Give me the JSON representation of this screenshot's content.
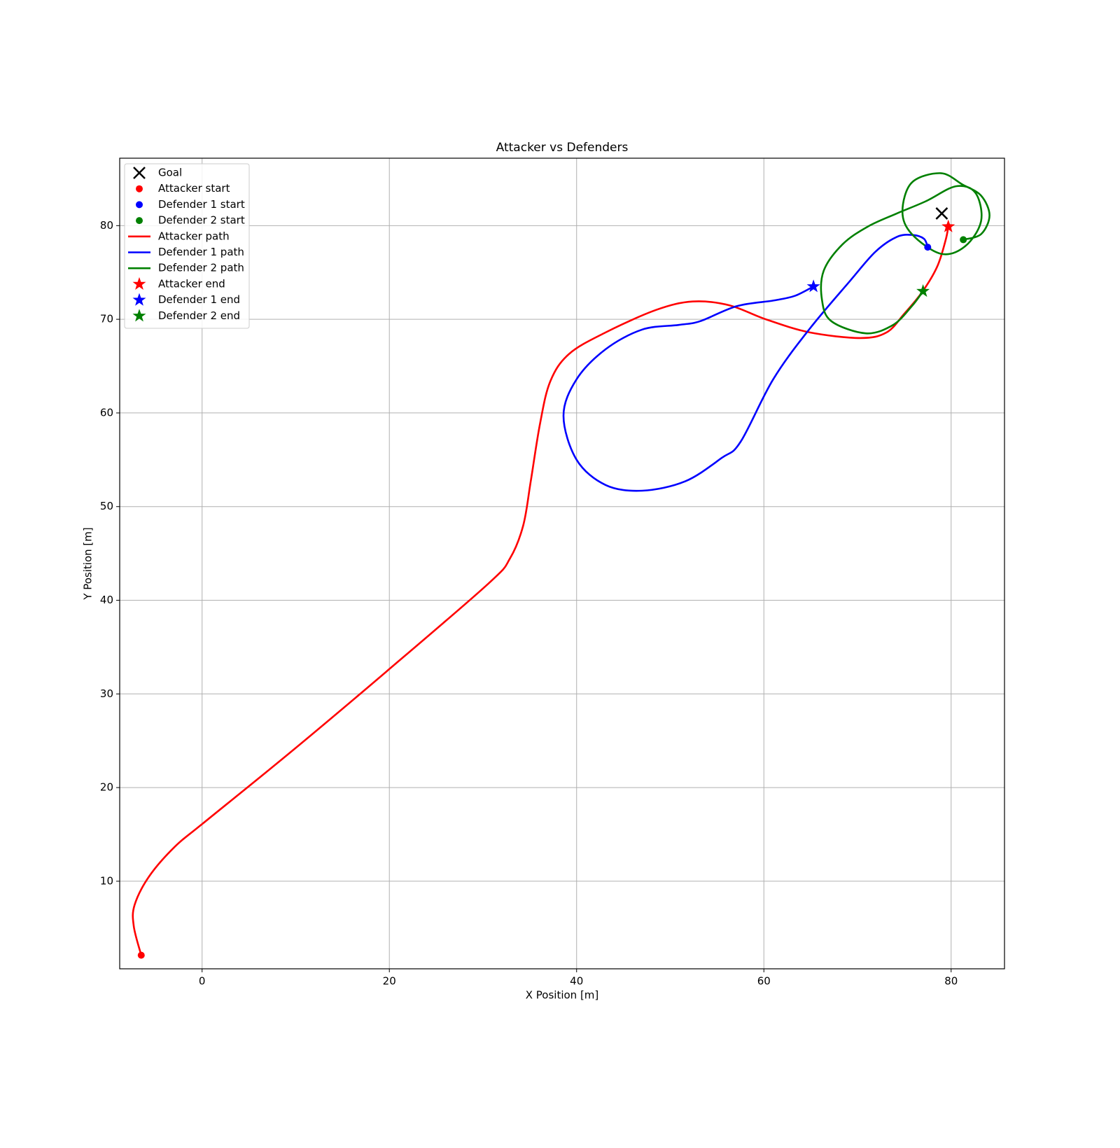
{
  "chart_data": {
    "type": "line",
    "title": "Attacker vs Defenders",
    "xlabel": "X Position [m]",
    "ylabel": "Y Position [m]",
    "xlim": [
      -8.8,
      85.7
    ],
    "ylim": [
      0.65,
      87.2
    ],
    "xticks": [
      0,
      20,
      40,
      60,
      80
    ],
    "yticks": [
      10,
      20,
      30,
      40,
      50,
      60,
      70,
      80
    ],
    "grid": true,
    "legend": "upper left",
    "series": [
      {
        "name": "Goal",
        "color": "#000000",
        "marker": "x",
        "x": [
          79.0
        ],
        "values": [
          81.3
        ]
      },
      {
        "name": "Attacker start",
        "color": "#ff0000",
        "marker": "o",
        "x": [
          -6.5
        ],
        "values": [
          2.1
        ]
      },
      {
        "name": "Defender 1 start",
        "color": "#0000ff",
        "marker": "o",
        "x": [
          77.5
        ],
        "values": [
          77.7
        ]
      },
      {
        "name": "Defender 2 start",
        "color": "#008000",
        "marker": "o",
        "x": [
          81.3
        ],
        "values": [
          78.5
        ]
      },
      {
        "name": "Attacker path",
        "color": "#ff0000",
        "marker": "line",
        "x": [
          -6.5,
          -7.3,
          -7.2,
          -5.6,
          -2.9,
          0.0,
          9.6,
          19.7,
          30.6,
          32.9,
          34.3,
          35.1,
          36.1,
          37.2,
          39.2,
          43.1,
          48.5,
          52.4,
          56.3,
          60.2,
          64.9,
          70.3,
          73.1,
          75.0,
          76.9,
          78.5,
          79.4,
          79.7
        ],
        "values": [
          2.1,
          5.2,
          7.5,
          10.6,
          13.7,
          16.1,
          23.9,
          32.4,
          41.8,
          44.5,
          48.0,
          52.7,
          58.9,
          63.4,
          66.3,
          68.6,
          71.0,
          71.9,
          71.5,
          70.0,
          68.6,
          68.0,
          68.6,
          70.6,
          72.9,
          75.6,
          78.4,
          79.9
        ]
      },
      {
        "name": "Defender 1 path",
        "color": "#0000ff",
        "marker": "line",
        "x": [
          77.5,
          77.1,
          75.9,
          74.2,
          71.9,
          69.2,
          64.9,
          61.0,
          57.5,
          55.5,
          51.6,
          47.0,
          43.1,
          40.0,
          38.6,
          40.0,
          43.1,
          47.0,
          50.9,
          53.2,
          57.1,
          61.0,
          63.3,
          65.3
        ],
        "values": [
          77.7,
          78.6,
          79.0,
          78.8,
          77.2,
          74.1,
          69.0,
          63.6,
          56.9,
          55.2,
          52.7,
          51.7,
          52.3,
          55.0,
          59.7,
          63.6,
          66.8,
          68.9,
          69.4,
          69.8,
          71.4,
          72.0,
          72.5,
          73.5
        ]
      },
      {
        "name": "Defender 2 path",
        "color": "#008000",
        "marker": "line",
        "x": [
          81.3,
          83.2,
          84.1,
          83.2,
          81.2,
          78.9,
          75.8,
          74.8,
          75.8,
          78.9,
          81.5,
          83.2,
          82.6,
          80.5,
          77.3,
          74.2,
          71.1,
          68.4,
          66.4,
          66.2,
          67.2,
          70.9,
          73.8,
          75.8,
          77.0
        ],
        "values": [
          78.5,
          79.1,
          81.1,
          83.2,
          84.4,
          85.6,
          84.6,
          81.5,
          79.1,
          77.0,
          77.8,
          80.5,
          83.5,
          84.2,
          82.6,
          81.3,
          79.9,
          78.0,
          75.2,
          72.1,
          69.8,
          68.5,
          69.4,
          71.4,
          73.0
        ]
      },
      {
        "name": "Attacker end",
        "color": "#ff0000",
        "marker": "*",
        "x": [
          79.7
        ],
        "values": [
          79.9
        ]
      },
      {
        "name": "Defender 1 end",
        "color": "#0000ff",
        "marker": "*",
        "x": [
          65.3
        ],
        "values": [
          73.5
        ]
      },
      {
        "name": "Defender 2 end",
        "color": "#008000",
        "marker": "*",
        "x": [
          77.0
        ],
        "values": [
          73.0
        ]
      }
    ]
  }
}
